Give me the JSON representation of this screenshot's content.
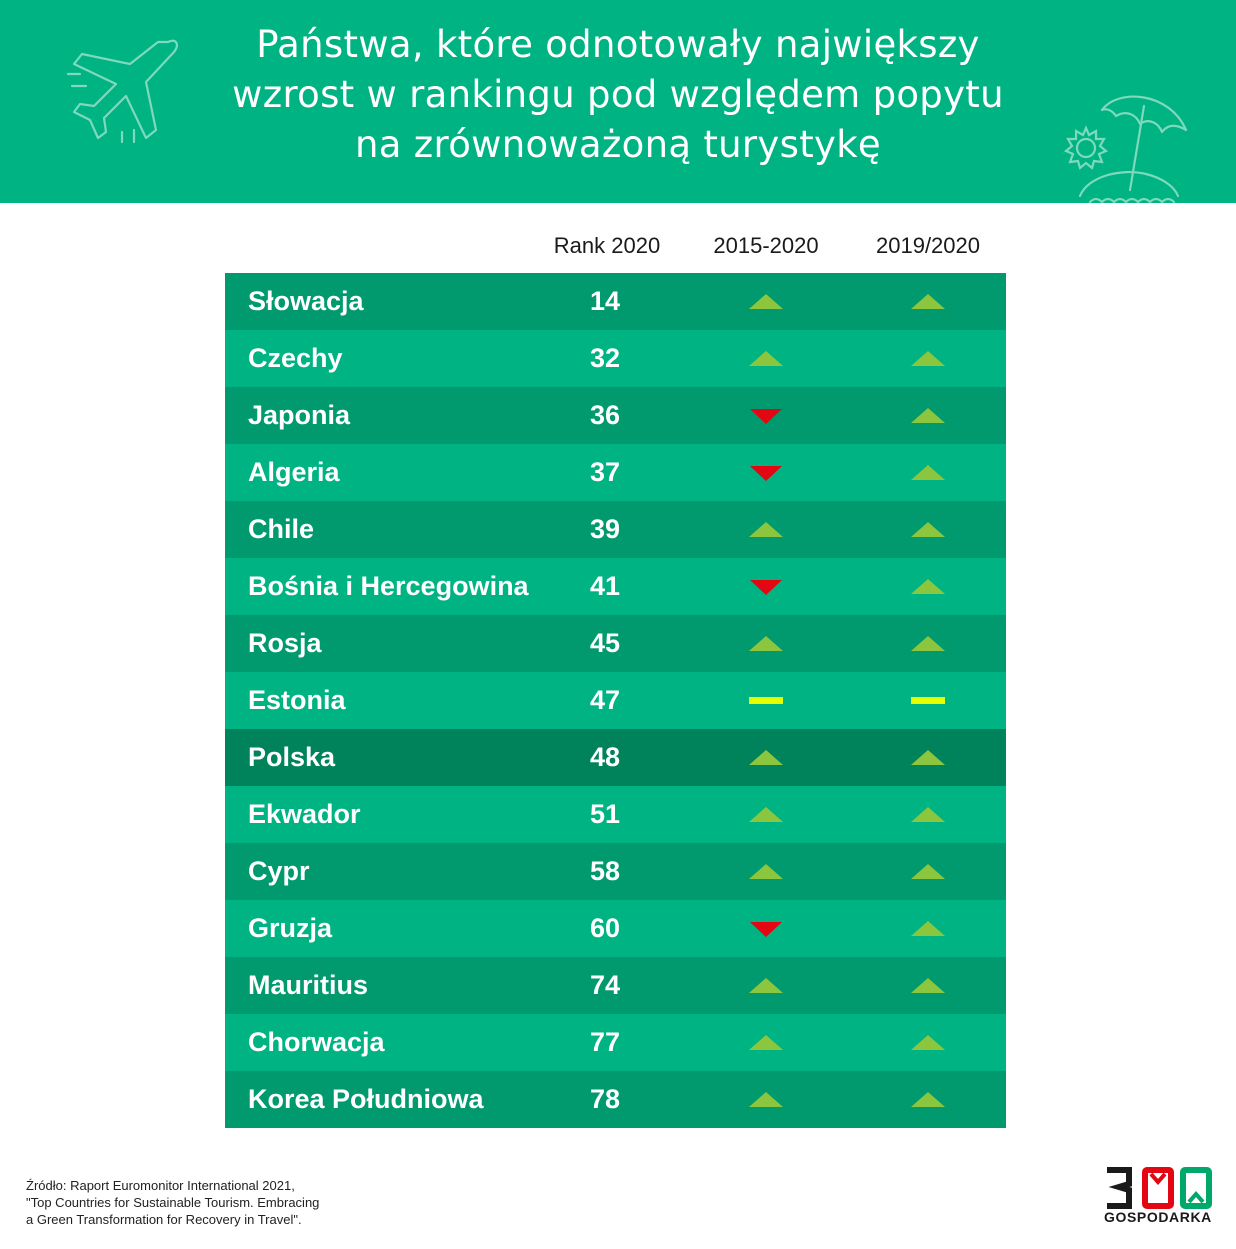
{
  "header": {
    "title_lines": [
      "Państwa, które odnotowały największy",
      "wzrost w rankingu pod względem popytu",
      "na zrównoważoną turystykę"
    ],
    "bg_color": "#00b383",
    "icons": [
      "airplane-icon",
      "sun-icon",
      "beach-umbrella-icon"
    ]
  },
  "columns": [
    "Rank 2020",
    "2015-2020",
    "2019/2020"
  ],
  "rows": [
    {
      "country": "Słowacja",
      "rank": "14",
      "trend_2015_2020": "up",
      "trend_2019_2020": "up"
    },
    {
      "country": "Czechy",
      "rank": "32",
      "trend_2015_2020": "up",
      "trend_2019_2020": "up"
    },
    {
      "country": "Japonia",
      "rank": "36",
      "trend_2015_2020": "down",
      "trend_2019_2020": "up"
    },
    {
      "country": "Algeria",
      "rank": "37",
      "trend_2015_2020": "down",
      "trend_2019_2020": "up"
    },
    {
      "country": "Chile",
      "rank": "39",
      "trend_2015_2020": "up",
      "trend_2019_2020": "up"
    },
    {
      "country": "Bośnia i Hercegowina",
      "rank": "41",
      "trend_2015_2020": "down",
      "trend_2019_2020": "up"
    },
    {
      "country": "Rosja",
      "rank": "45",
      "trend_2015_2020": "up",
      "trend_2019_2020": "up"
    },
    {
      "country": "Estonia",
      "rank": "47",
      "trend_2015_2020": "same",
      "trend_2019_2020": "same"
    },
    {
      "country": "Polska",
      "rank": "48",
      "trend_2015_2020": "up",
      "trend_2019_2020": "up",
      "highlight": true
    },
    {
      "country": "Ekwador",
      "rank": "51",
      "trend_2015_2020": "up",
      "trend_2019_2020": "up"
    },
    {
      "country": "Cypr",
      "rank": "58",
      "trend_2015_2020": "up",
      "trend_2019_2020": "up"
    },
    {
      "country": "Gruzja",
      "rank": "60",
      "trend_2015_2020": "down",
      "trend_2019_2020": "up"
    },
    {
      "country": "Mauritius",
      "rank": "74",
      "trend_2015_2020": "up",
      "trend_2019_2020": "up"
    },
    {
      "country": "Chorwacja",
      "rank": "77",
      "trend_2015_2020": "up",
      "trend_2019_2020": "up"
    },
    {
      "country": "Korea Południowa",
      "rank": "78",
      "trend_2015_2020": "up",
      "trend_2019_2020": "up"
    }
  ],
  "colors": {
    "row_dark": "#009a6e",
    "row_light": "#00b383",
    "row_highlight": "#00835a",
    "up": "#8cc63f",
    "down": "#e30613",
    "same": "#e6ff00"
  },
  "source_lines": [
    "Źródło: Raport Euromonitor International 2021,",
    "\"Top Countries for Sustainable Tourism. Embracing",
    "a Green Transformation for Recovery in Travel\"."
  ],
  "logo": {
    "number": "300",
    "text": "GOSPODARKA"
  }
}
